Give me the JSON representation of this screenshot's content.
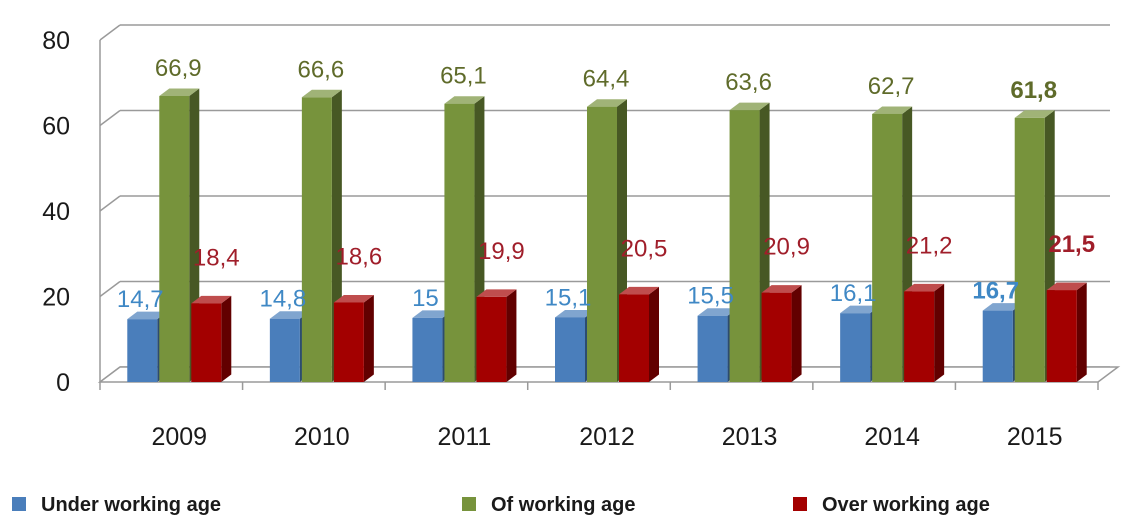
{
  "chart_data": {
    "type": "bar",
    "categories": [
      "2009",
      "2010",
      "2011",
      "2012",
      "2013",
      "2014",
      "2015"
    ],
    "series": [
      {
        "name": "Under working age",
        "values": [
          14.7,
          14.8,
          15,
          15.1,
          15.5,
          16.1,
          16.7
        ],
        "labels": [
          "14,7",
          "14,8",
          "15",
          "15,1",
          "15,5",
          "16,1",
          "16,7"
        ],
        "color": "#4a7ebb",
        "label_color": "#3f88c5"
      },
      {
        "name": "Of working age",
        "values": [
          66.9,
          66.6,
          65.1,
          64.4,
          63.6,
          62.7,
          61.8
        ],
        "labels": [
          "66,9",
          "66,6",
          "65,1",
          "64,4",
          "63,6",
          "62,7",
          "61,8"
        ],
        "color": "#77933c",
        "label_color": "#5f6b2a"
      },
      {
        "name": "Over working age",
        "values": [
          18.4,
          18.6,
          19.9,
          20.5,
          20.9,
          21.2,
          21.5
        ],
        "labels": [
          "18,4",
          "18,6",
          "19,9",
          "20,5",
          "20,9",
          "21,2",
          "21,5"
        ],
        "color": "#a30000",
        "label_color": "#a01e2a"
      }
    ],
    "y_ticks": [
      "0",
      "20",
      "40",
      "60",
      "80"
    ],
    "ylim": [
      0,
      80
    ],
    "grid": true,
    "legend_position": "bottom",
    "bold_last_category_labels": true
  }
}
